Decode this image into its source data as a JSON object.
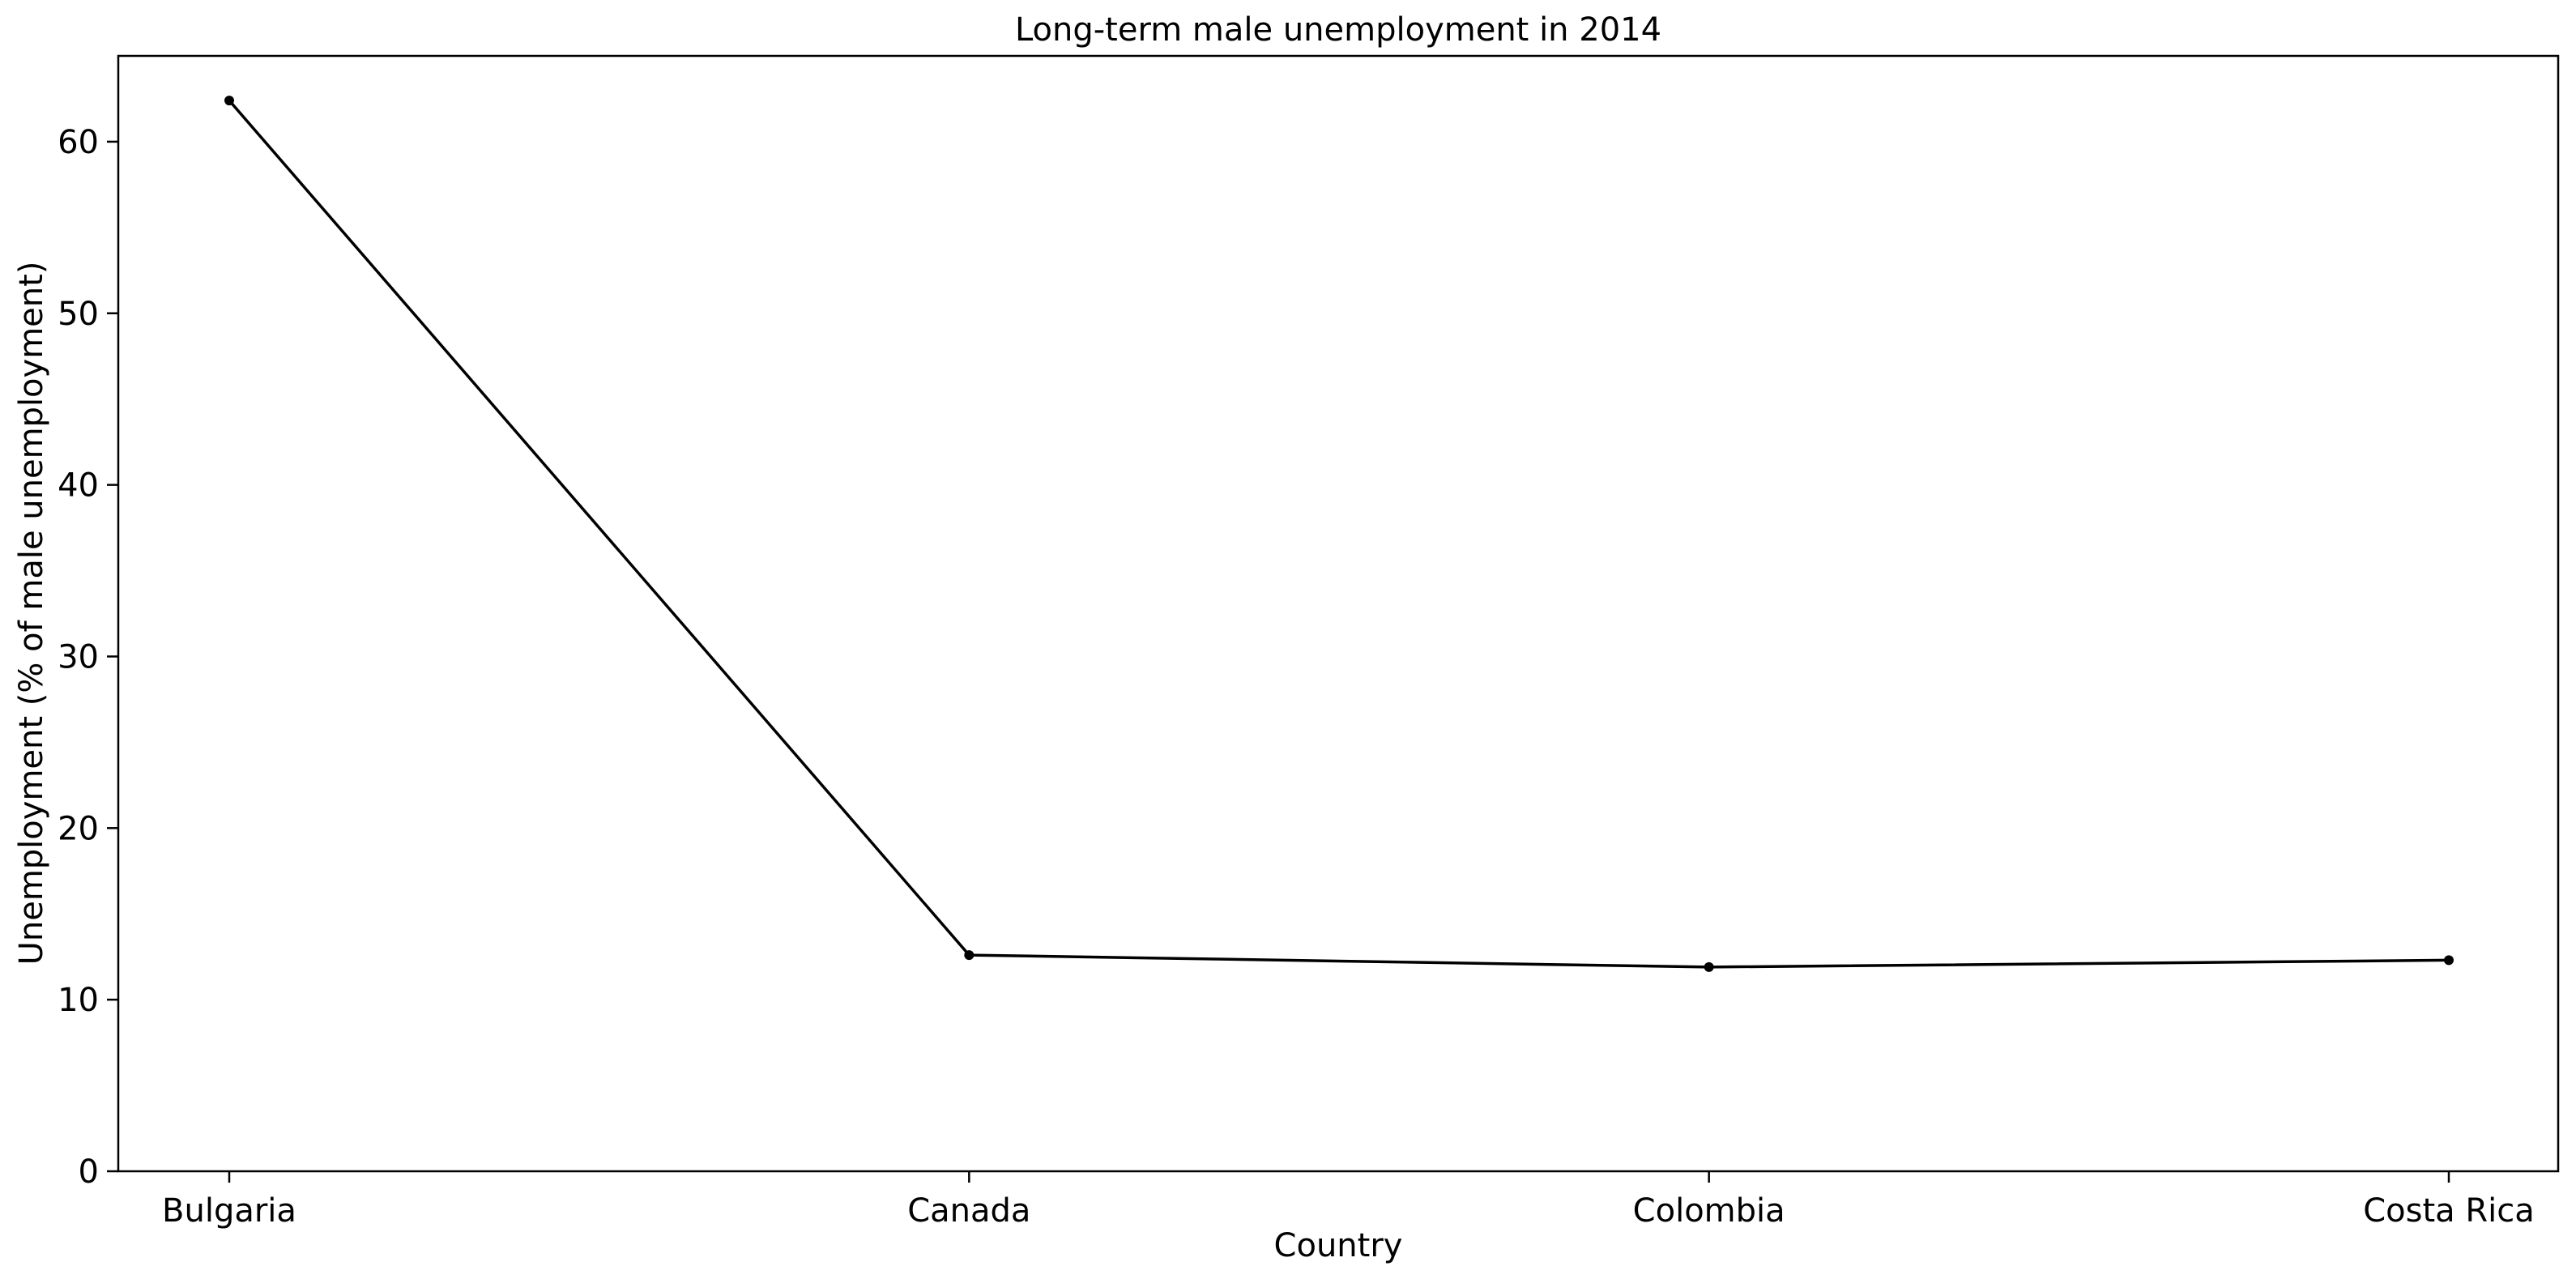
{
  "chart_data": {
    "type": "line",
    "title": "Long-term male unemployment in 2014",
    "xlabel": "Country",
    "ylabel": "Unemployment (% of male unemployment)",
    "categories": [
      "Bulgaria",
      "Canada",
      "Colombia",
      "Costa Rica"
    ],
    "series": [
      {
        "values": [
          62.4,
          12.6,
          11.9,
          12.3
        ],
        "color": "#000000"
      }
    ],
    "ylim": [
      0,
      65
    ],
    "yticks": [
      0,
      10,
      20,
      30,
      40,
      50,
      60
    ],
    "grid": false,
    "marker": "dot"
  }
}
